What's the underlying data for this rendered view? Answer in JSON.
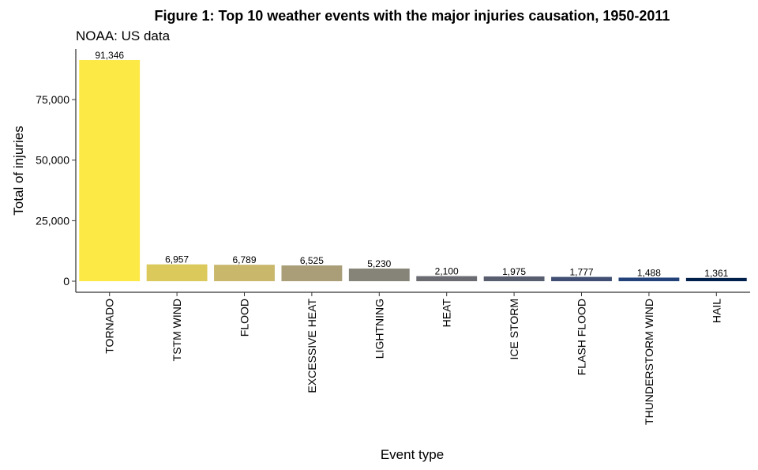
{
  "chart_data": {
    "type": "bar",
    "title": "Figure 1: Top 10 weather events with the major injuries causation, 1950-2011",
    "subtitle": "NOAA: US data",
    "xlabel": "Event type",
    "ylabel": "Total of injuries",
    "categories": [
      "TORNADO",
      "TSTM WIND",
      "FLOOD",
      "EXCESSIVE HEAT",
      "LIGHTNING",
      "HEAT",
      "ICE STORM",
      "FLASH FLOOD",
      "THUNDERSTORM WIND",
      "HAIL"
    ],
    "values": [
      91346,
      6957,
      6789,
      6525,
      5230,
      2100,
      1975,
      1777,
      1488,
      1361
    ],
    "value_labels": [
      "91,346",
      "6,957",
      "6,789",
      "6,525",
      "5,230",
      "2,100",
      "1,975",
      "1,777",
      "1,488",
      "1,361"
    ],
    "colors": [
      "#FDE945",
      "#DBC95B",
      "#C9B76B",
      "#A99E78",
      "#868478",
      "#6B6C72",
      "#585E6E",
      "#3F4E72",
      "#23427A",
      "#00204C"
    ],
    "yticks": [
      0,
      25000,
      50000,
      75000
    ],
    "ytick_labels": [
      "0",
      "25,000",
      "50,000",
      "75,000"
    ],
    "ylim": [
      -4567,
      95913
    ],
    "grid": false,
    "legend": "none"
  }
}
